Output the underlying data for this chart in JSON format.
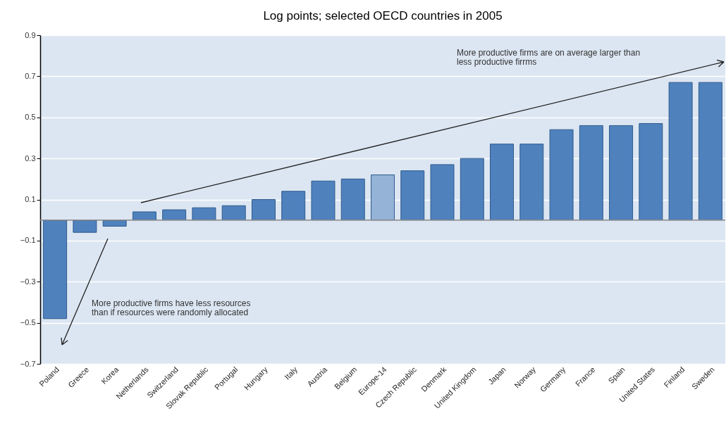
{
  "chart_data": {
    "type": "bar",
    "title": "Log points; selected OECD countries in 2005",
    "categories": [
      "Poland",
      "Greece",
      "Korea",
      "Netherlands",
      "Switzerland",
      "Slovak Republic",
      "Portugal",
      "Hungary",
      "Italy",
      "Austria",
      "Belgium",
      "Europe-14",
      "Czech Republic",
      "Denmark",
      "United Kingdom",
      "Japan",
      "Norway",
      "Germany",
      "France",
      "Spain",
      "United States",
      "Finland",
      "Sweden"
    ],
    "values": [
      -0.48,
      -0.06,
      -0.03,
      0.04,
      0.05,
      0.06,
      0.07,
      0.1,
      0.14,
      0.19,
      0.2,
      0.22,
      0.24,
      0.27,
      0.3,
      0.37,
      0.37,
      0.44,
      0.46,
      0.46,
      0.47,
      0.67,
      0.67
    ],
    "colors": [
      "#4f81bd",
      "#4f81bd",
      "#4f81bd",
      "#4f81bd",
      "#4f81bd",
      "#4f81bd",
      "#4f81bd",
      "#4f81bd",
      "#4f81bd",
      "#4f81bd",
      "#4f81bd",
      "#95b3d7",
      "#4f81bd",
      "#4f81bd",
      "#4f81bd",
      "#4f81bd",
      "#4f81bd",
      "#4f81bd",
      "#4f81bd",
      "#4f81bd",
      "#4f81bd",
      "#4f81bd",
      "#4f81bd"
    ],
    "ylim": [
      -0.7,
      0.9
    ],
    "yticks": [
      -0.7,
      -0.5,
      -0.3,
      -0.1,
      0.1,
      0.3,
      0.5,
      0.7,
      0.9
    ],
    "grid": "y",
    "annotations": [
      "More productive firms are on average larger than less productive firrms",
      "More productive firms have less resources than if resources were randomly allocated"
    ]
  }
}
